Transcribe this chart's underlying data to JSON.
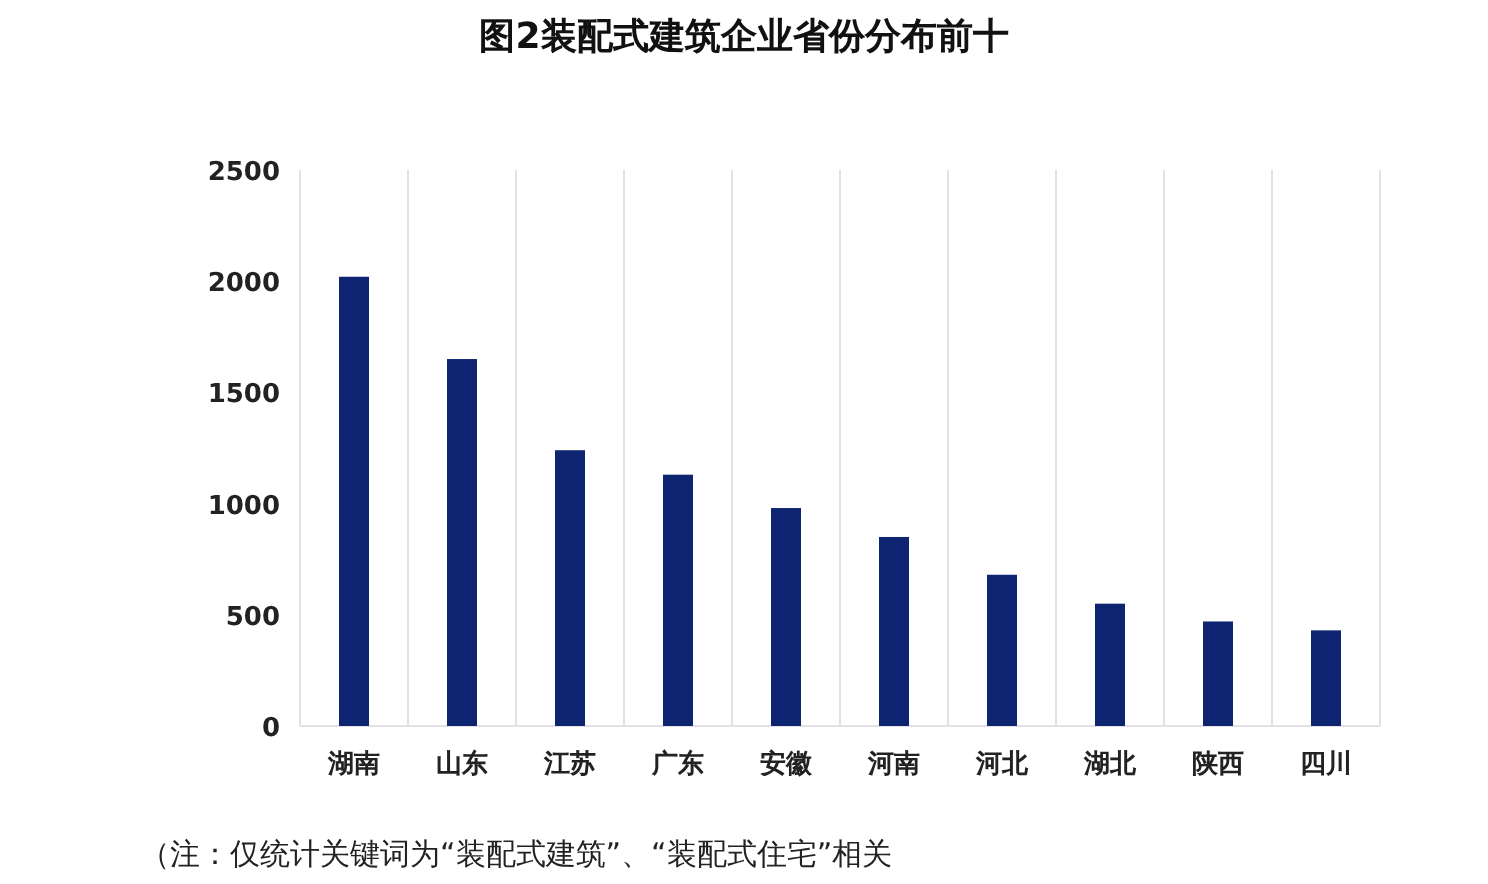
{
  "chart_data": {
    "type": "bar",
    "title": "图2装配式建筑企业省份分布前十",
    "categories": [
      "湖南",
      "山东",
      "江苏",
      "广东",
      "安徽",
      "河南",
      "河北",
      "湖北",
      "陕西",
      "四川"
    ],
    "values": [
      2020,
      1650,
      1240,
      1130,
      980,
      850,
      680,
      550,
      470,
      430
    ],
    "color": "#0d2470",
    "ylim": [
      0,
      2500
    ],
    "yticks": [
      0,
      500,
      1000,
      1500,
      2000,
      2500
    ],
    "grid": "x",
    "annotations": [
      "（注：仅统计关键词为“装配式建筑”、“装配式住宅”相关"
    ]
  }
}
